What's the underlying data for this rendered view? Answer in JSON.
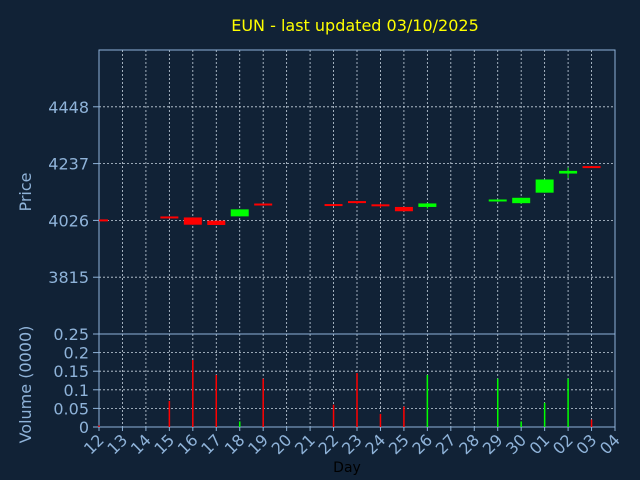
{
  "chart_data": [
    {
      "type": "candlestick",
      "title": "EUN - last updated 03/10/2025",
      "ylabel": "Price",
      "xlabel": "",
      "y_ticks": [
        3815,
        4026,
        4237,
        4448
      ],
      "ylim": [
        3604,
        4659
      ],
      "x_tick_labels": [
        "12",
        "13",
        "14",
        "15",
        "16",
        "17",
        "18",
        "19",
        "20",
        "21",
        "22",
        "23",
        "24",
        "25",
        "26",
        "27",
        "28",
        "29",
        "30",
        "01",
        "02",
        "03",
        "04"
      ],
      "grid": true,
      "candles": [
        {
          "day": "12",
          "open": 4026,
          "close": 4026,
          "high": 4026,
          "low": 4026
        },
        {
          "day": "15",
          "open": 4037,
          "close": 4037,
          "high": 4037,
          "low": 4037
        },
        {
          "day": "16",
          "open": 4037,
          "close": 4010,
          "high": 4037,
          "low": 4010
        },
        {
          "day": "17",
          "open": 4025,
          "close": 4009,
          "high": 4025,
          "low": 4009
        },
        {
          "day": "18",
          "open": 4041,
          "close": 4067,
          "high": 4067,
          "low": 4041
        },
        {
          "day": "19",
          "open": 4085,
          "close": 4085,
          "high": 4085,
          "low": 4085
        },
        {
          "day": "22",
          "open": 4083,
          "close": 4081,
          "high": 4083,
          "low": 4081
        },
        {
          "day": "23",
          "open": 4094,
          "close": 4087,
          "high": 4094,
          "low": 4087
        },
        {
          "day": "24",
          "open": 4082,
          "close": 4079,
          "high": 4089,
          "low": 4073
        },
        {
          "day": "25",
          "open": 4076,
          "close": 4060,
          "high": 4076,
          "low": 4060
        },
        {
          "day": "26",
          "open": 4076,
          "close": 4089,
          "high": 4091,
          "low": 4070
        },
        {
          "day": "29",
          "open": 4095,
          "close": 4100,
          "high": 4100,
          "low": 4095
        },
        {
          "day": "30",
          "open": 4090,
          "close": 4110,
          "high": 4110,
          "low": 4088
        },
        {
          "day": "01",
          "open": 4129,
          "close": 4178,
          "high": 4178,
          "low": 4129
        },
        {
          "day": "02",
          "open": 4200,
          "close": 4210,
          "high": 4222,
          "low": 4183
        },
        {
          "day": "03",
          "open": 4224,
          "close": 4224,
          "high": 4227,
          "low": 4224
        }
      ]
    },
    {
      "type": "bar",
      "ylabel": "Volume (0000)",
      "xlabel": "Day",
      "y_ticks": [
        0,
        0.05,
        0.1,
        0.15,
        0.2,
        0.25
      ],
      "y_tick_labels": [
        "0",
        "0.05",
        "0.1",
        "0.15",
        "0.2",
        "0.25"
      ],
      "ylim": [
        0,
        0.25
      ],
      "x_tick_labels": [
        "12",
        "13",
        "14",
        "15",
        "16",
        "17",
        "18",
        "19",
        "20",
        "21",
        "22",
        "23",
        "24",
        "25",
        "26",
        "27",
        "28",
        "29",
        "30",
        "01",
        "02",
        "03",
        "04"
      ],
      "grid": true,
      "bars": [
        {
          "day": "12",
          "value": 0.004,
          "color": "#ff0000"
        },
        {
          "day": "15",
          "value": 0.07,
          "color": "#ff0000"
        },
        {
          "day": "16",
          "value": 0.18,
          "color": "#ff0000"
        },
        {
          "day": "17",
          "value": 0.14,
          "color": "#ff0000"
        },
        {
          "day": "18",
          "value": 0.015,
          "color": "#00ff00"
        },
        {
          "day": "19",
          "value": 0.13,
          "color": "#ff0000"
        },
        {
          "day": "22",
          "value": 0.06,
          "color": "#ff0000"
        },
        {
          "day": "23",
          "value": 0.145,
          "color": "#ff0000"
        },
        {
          "day": "24",
          "value": 0.035,
          "color": "#ff0000"
        },
        {
          "day": "25",
          "value": 0.055,
          "color": "#ff0000"
        },
        {
          "day": "26",
          "value": 0.14,
          "color": "#00ff00"
        },
        {
          "day": "29",
          "value": 0.13,
          "color": "#00ff00"
        },
        {
          "day": "30",
          "value": 0.015,
          "color": "#00ff00"
        },
        {
          "day": "01",
          "value": 0.065,
          "color": "#00ff00"
        },
        {
          "day": "02",
          "value": 0.13,
          "color": "#00ff00"
        },
        {
          "day": "03",
          "value": 0.02,
          "color": "#ff0000"
        }
      ]
    }
  ],
  "colors": {
    "background": "#112236",
    "title": "#ffff00",
    "axis_text": "#8fb3d9",
    "up": "#00ff00",
    "down": "#ff0000"
  }
}
